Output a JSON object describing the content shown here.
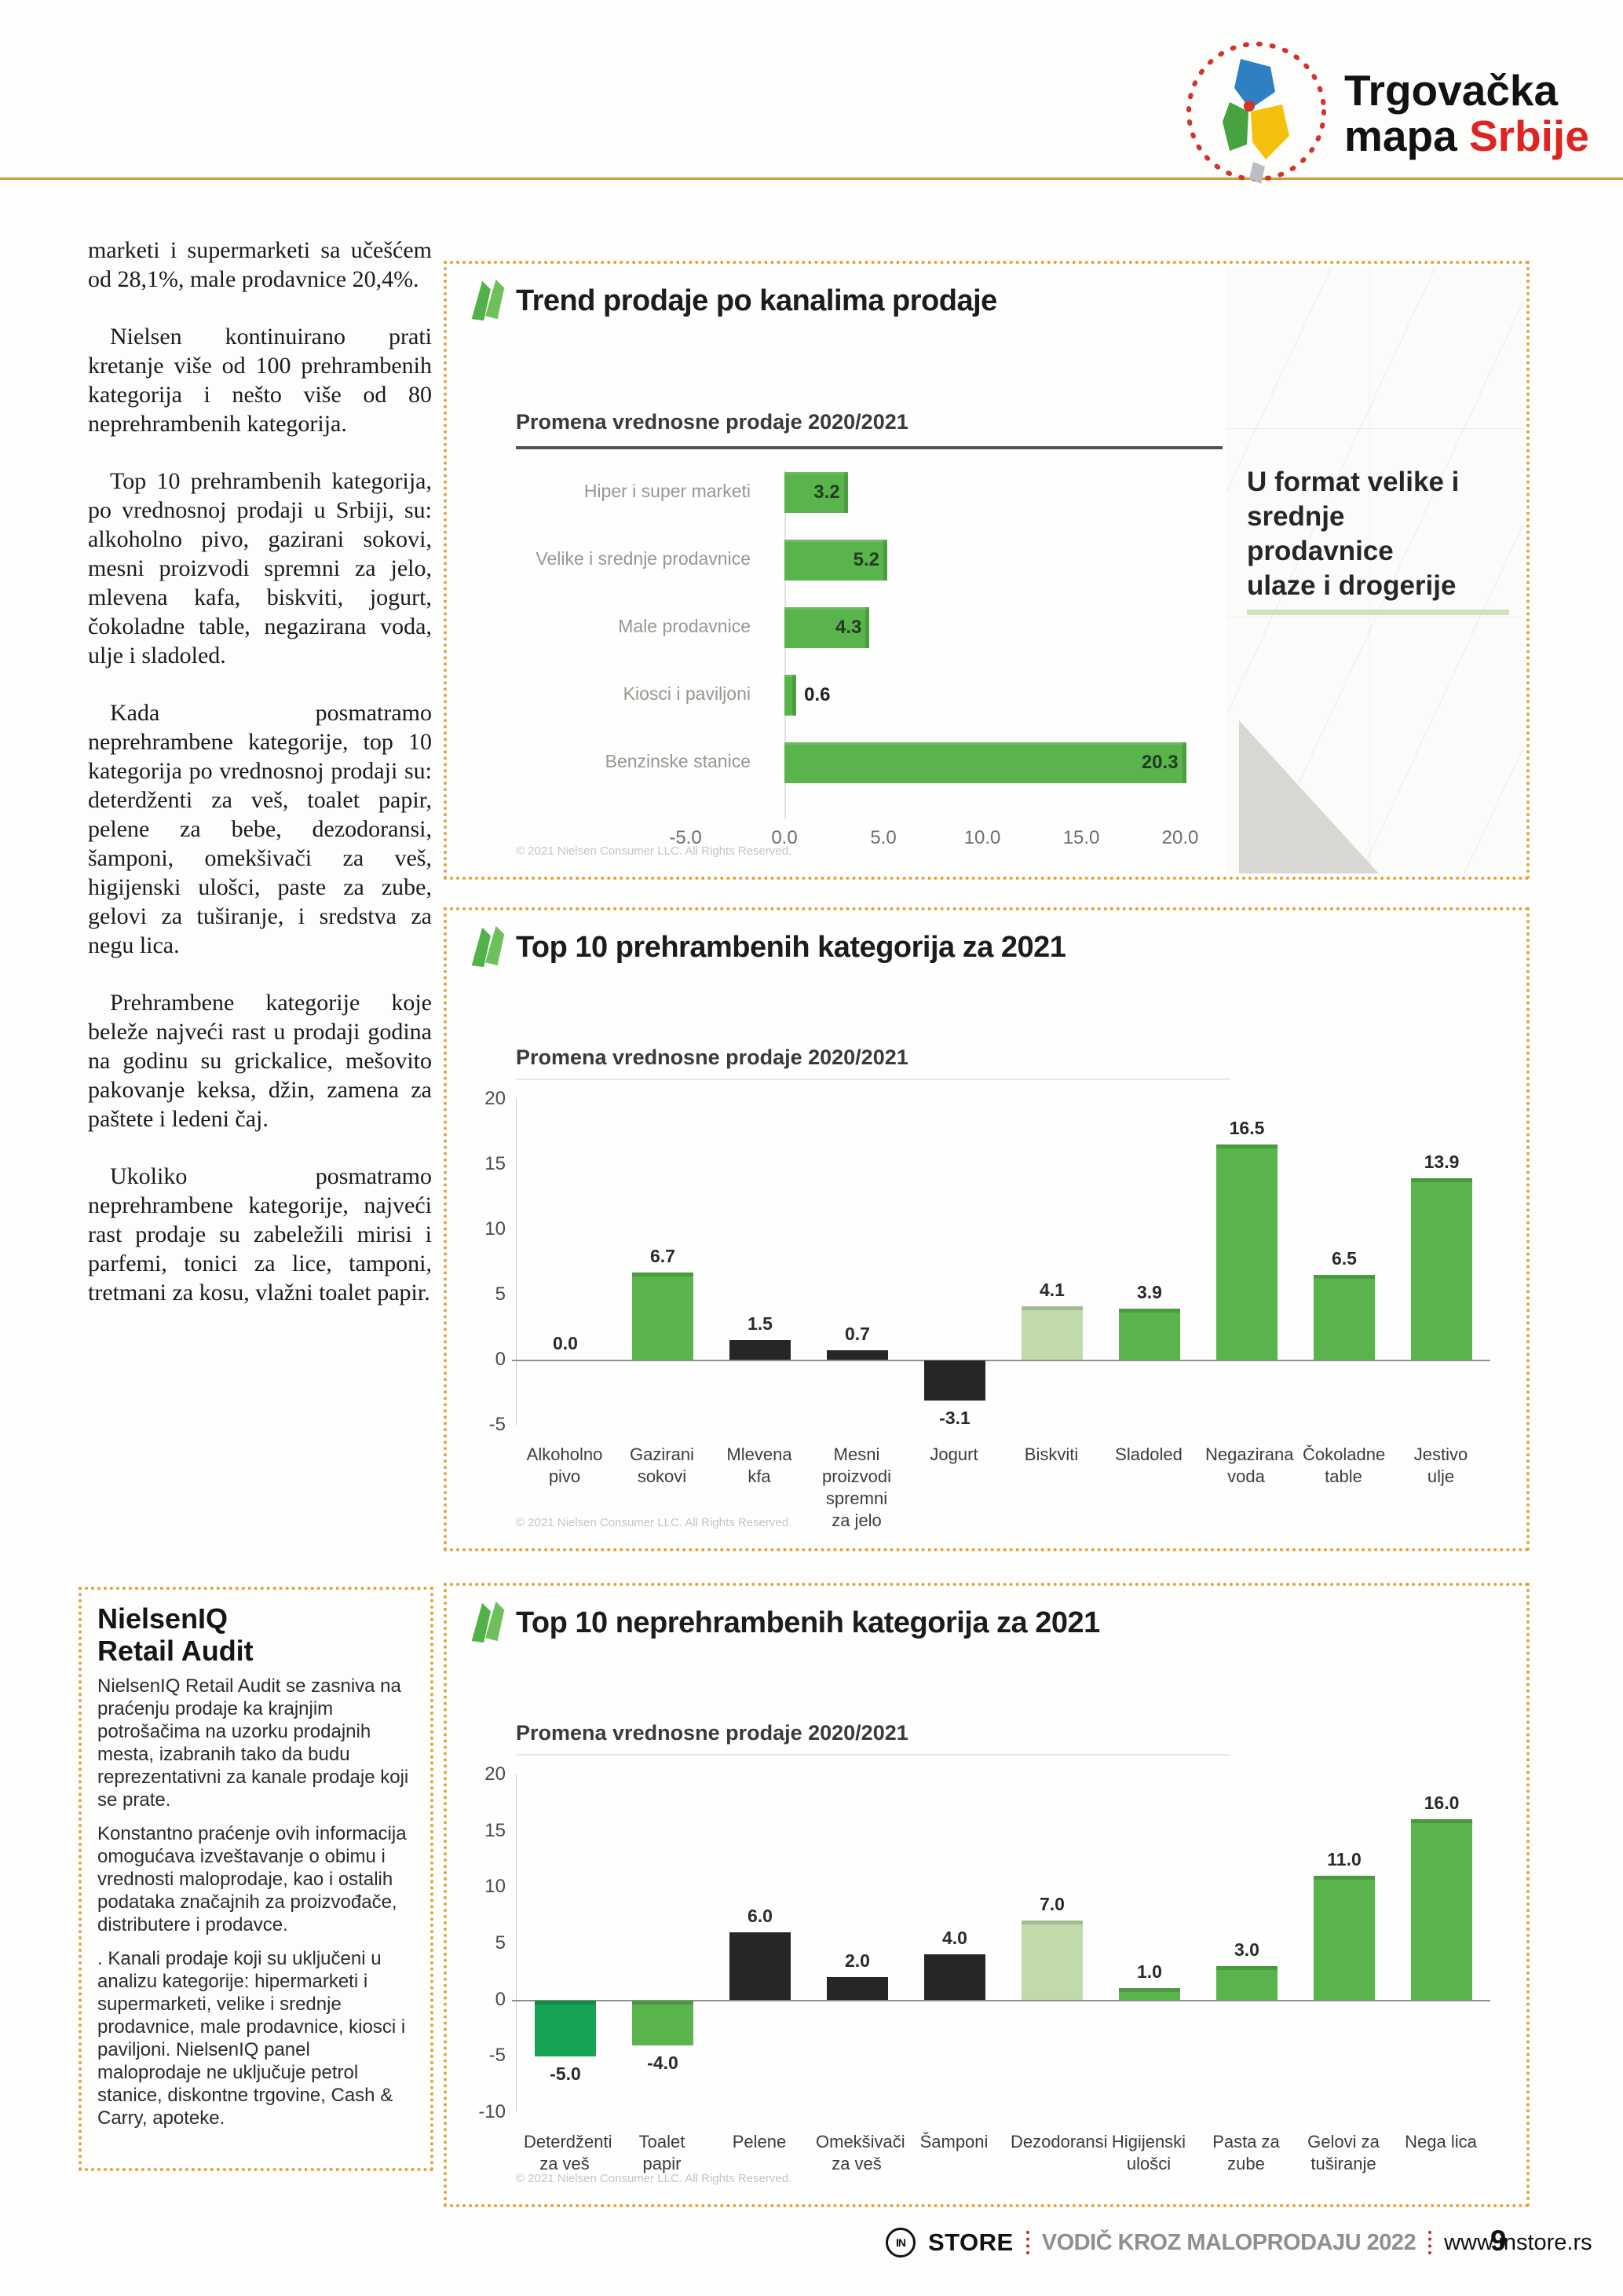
{
  "header": {
    "logo_line1": "Trgovačka",
    "logo_line2_black": "mapa ",
    "logo_line2_red": "Srbije"
  },
  "article": {
    "paragraphs": [
      "marketi i supermarketi sa učešćem od 28,1%, male prodavnice 20,4%.",
      "Nielsen kontinuirano prati kretanje više od 100 prehrambenih kategorija i nešto više od 80 neprehrambenih kategorija.",
      "Top 10 prehrambenih kategorija, po vrednosnoj prodaji u Srbiji, su: alkoholno pivo, gazirani sokovi, mesni proizvodi spremni za jelo, mlevena kafa, biskviti, jogurt, čokoladne table, negazirana voda, ulje i sladoled.",
      "Kada posmatramo neprehrambene kategorije, top 10 kategorija po vrednosnoj prodaji su: deterdženti za veš, toalet papir, pelene za bebe, dezodoransi, šamponi, omekšivači za veš, higijenski ulošci, paste za zube, gelovi za tuširanje, i sredstva za negu lica.",
      "Prehrambene kategorije koje beleže najveći rast u prodaji godina na godinu su grickalice, mešovito pakovanje keksa, džin, zamena za paštete i ledeni čaj.",
      "Ukoliko posmatramo neprehrambene kategorije, najveći rast prodaje su zabeležili mirisi i parfemi, tonici za lice, tamponi, tretmani za kosu, vlažni toalet papir."
    ]
  },
  "niq_box": {
    "title_line1": "NielsenIQ",
    "title_line2": "Retail Audit",
    "paragraphs": [
      "NielsenIQ Retail Audit se zasniva na praćenju prodaje ka krajnjim potrošačima na uzorku prodajnih mesta, izabranih tako da budu reprezentativni za kanale prodaje koji se prate.",
      "Konstantno praćenje ovih informacija omogućava izveštavanje o obimu i vrednosti maloprodaje, kao i ostalih podataka značajnih za proizvođače, distributere i prodavce.",
      ". Kanali prodaje koji su uključeni u analizu kategorije: hipermarketi i supermarketi, velike i srednje prodavnice, male prodavnice, kiosci i paviljoni. NielsenIQ panel maloprodaje ne uključuje petrol stanice, diskontne trgovine, Cash & Carry, apoteke."
    ]
  },
  "chart_data": [
    {
      "type": "bar",
      "orientation": "horizontal",
      "title": "Trend prodaje po kanalima prodaje",
      "subtitle": "Promena vrednosne prodaje 2020/2021",
      "categories": [
        "Hiper i super marketi",
        "Velike i srednje prodavnice",
        "Male prodavnice",
        "Kiosci i paviljoni",
        "Benzinske stanice"
      ],
      "values": [
        3.2,
        5.2,
        4.3,
        0.6,
        20.3
      ],
      "value_labels": [
        "3.2",
        "5.2",
        "4.3",
        "0.6",
        "20.3"
      ],
      "xlim": [
        -5,
        21
      ],
      "xticks": [
        -5,
        0,
        5,
        10,
        15,
        20
      ],
      "xtick_labels": [
        "-5.0",
        "0.0",
        "5.0",
        "10.0",
        "15.0",
        "20.0"
      ],
      "grid": false,
      "legend": false,
      "source": "© 2021 Nielsen Consumer LLC. All Rights Reserved.",
      "callout_lines": [
        "U format velike i",
        "srednje",
        "prodavnice",
        "ulaze i drogerije"
      ]
    },
    {
      "type": "bar",
      "orientation": "vertical",
      "title": "Top 10 prehrambenih kategorija za 2021",
      "subtitle": "Promena vrednosne prodaje 2020/2021",
      "categories": [
        "Alkoholno pivo",
        "Gazirani sokovi",
        "Mlevena kfa",
        "Mesni proizvodi spremni za jelo",
        "Jogurt",
        "Biskviti",
        "Sladoled",
        "Negazirana voda",
        "Čokoladne table",
        "Jestivo ulje"
      ],
      "values": [
        0.0,
        6.7,
        1.5,
        0.7,
        -3.1,
        4.1,
        3.9,
        16.5,
        6.5,
        13.9
      ],
      "value_labels": [
        "0.0",
        "6.7",
        "1.5",
        "0.7",
        "-3.1",
        "4.1",
        "3.9",
        "16.5",
        "6.5",
        "13.9"
      ],
      "bar_colors": [
        "none",
        "green",
        "dark",
        "dark",
        "dark",
        "light_green",
        "green",
        "green",
        "green",
        "green"
      ],
      "ylim": [
        -5,
        20
      ],
      "yticks": [
        20,
        15,
        10,
        5,
        0,
        -5
      ],
      "grid": false,
      "legend": false,
      "source": "© 2021 Nielsen Consumer LLC. All Rights Reserved."
    },
    {
      "type": "bar",
      "orientation": "vertical",
      "title": "Top 10 neprehrambenih kategorija za 2021",
      "subtitle": "Promena vrednosne prodaje 2020/2021",
      "categories": [
        "Deterdženti za veš",
        "Toalet papir",
        "Pelene",
        "Omekšivači za veš",
        "Šamponi",
        "Dezodoransi",
        "Higijenski ulošci",
        "Pasta za zube",
        "Gelovi za tuširanje",
        "Nega lica"
      ],
      "values": [
        -5.0,
        -4.0,
        6.0,
        2.0,
        4.0,
        7.0,
        1.0,
        3.0,
        11.0,
        16.0
      ],
      "value_labels": [
        "-5.0",
        "-4.0",
        "6.0",
        "2.0",
        "4.0",
        "7.0",
        "1.0",
        "3.0",
        "11.0",
        "16.0"
      ],
      "bar_colors": [
        "emerald",
        "green",
        "dark",
        "dark",
        "dark",
        "light_green",
        "green",
        "green",
        "green",
        "green"
      ],
      "ylim": [
        -10,
        20
      ],
      "yticks": [
        20,
        15,
        10,
        5,
        0,
        -5,
        -10
      ],
      "grid": false,
      "legend": false,
      "source": "© 2021 Nielsen Consumer LLC. All Rights Reserved."
    }
  ],
  "footer": {
    "brand_in": "IN",
    "brand": "STORE",
    "guide": "VODIČ KROZ MALOPRODAJU 2022",
    "site": "www.instore.rs",
    "page": "9"
  },
  "colors": {
    "green": "#58b44b",
    "light_green": "#c0dba9",
    "dark": "#262625",
    "emerald": "#16a356",
    "accent_border": "#e2a438",
    "gold_rule": "#d79a33",
    "red": "#cf2a25"
  }
}
